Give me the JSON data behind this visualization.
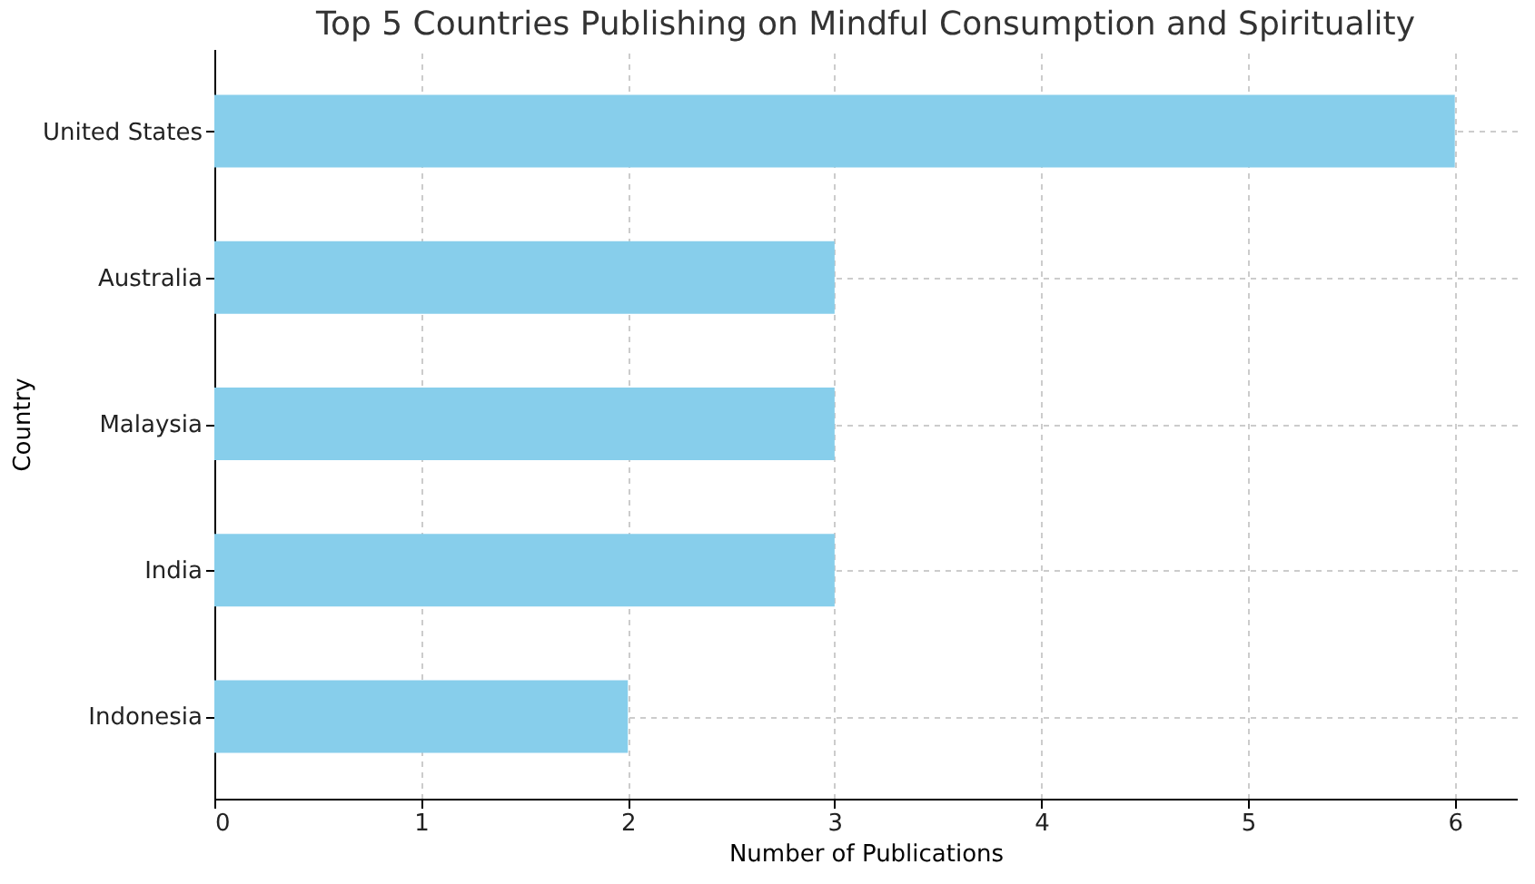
{
  "chart_data": {
    "type": "bar",
    "orientation": "horizontal",
    "title": "Top 5 Countries Publishing on Mindful Consumption and Spirituality",
    "xlabel": "Number of Publications",
    "ylabel": "Country",
    "categories": [
      "United States",
      "Australia",
      "Malaysia",
      "India",
      "Indonesia"
    ],
    "values": [
      6,
      3,
      3,
      3,
      2
    ],
    "color": "#87ceeb",
    "xlim": [
      0,
      6.3
    ],
    "xticks": [
      0,
      1,
      2,
      3,
      4,
      5,
      6
    ],
    "grid": true
  }
}
